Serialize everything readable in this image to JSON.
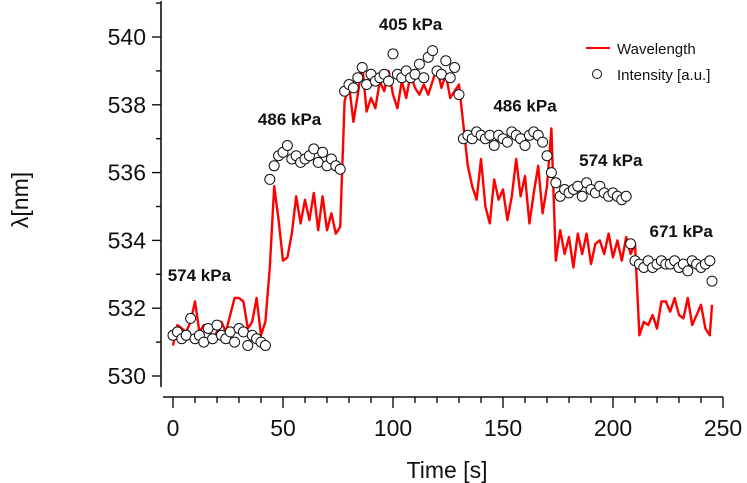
{
  "chart_data": {
    "type": "line",
    "xlabel": "Time [s]",
    "ylabel": "λ[nm]",
    "xlim": [
      0,
      250
    ],
    "ylim": [
      530,
      541
    ],
    "xticks": [
      0,
      50,
      100,
      150,
      200,
      250
    ],
    "yticks": [
      530,
      532,
      534,
      536,
      538,
      540
    ],
    "grid": false,
    "legend_position": "top-right",
    "series": [
      {
        "name": "Wavelength",
        "color": "#ff0000",
        "x": [
          0,
          2,
          4,
          6,
          8,
          10,
          12,
          14,
          16,
          18,
          20,
          22,
          24,
          26,
          28,
          30,
          32,
          34,
          36,
          38,
          40,
          42,
          44,
          46,
          48,
          50,
          52,
          54,
          56,
          58,
          60,
          62,
          64,
          66,
          68,
          70,
          72,
          74,
          76,
          78,
          80,
          82,
          84,
          86,
          88,
          90,
          92,
          94,
          96,
          98,
          100,
          102,
          104,
          106,
          108,
          110,
          112,
          114,
          116,
          118,
          120,
          122,
          124,
          126,
          128,
          130,
          132,
          134,
          136,
          138,
          140,
          142,
          144,
          146,
          148,
          150,
          152,
          154,
          156,
          158,
          160,
          162,
          164,
          166,
          168,
          170,
          172,
          174,
          176,
          178,
          180,
          182,
          184,
          186,
          188,
          190,
          192,
          194,
          196,
          198,
          200,
          202,
          204,
          206,
          208,
          210,
          212,
          214,
          216,
          218,
          220,
          222,
          224,
          226,
          228,
          230,
          232,
          234,
          236,
          238,
          240,
          242,
          244,
          245
        ],
        "values": [
          530.9,
          531.5,
          531.4,
          531.3,
          531.6,
          532.2,
          531.3,
          531.5,
          531.4,
          531.1,
          531.3,
          531.6,
          531.3,
          531.8,
          532.3,
          532.3,
          532.2,
          531.4,
          531.6,
          532.3,
          531.2,
          531.6,
          533.2,
          535.6,
          534.6,
          533.4,
          533.5,
          534.2,
          535.3,
          534.5,
          535.2,
          534.6,
          535.4,
          534.3,
          535.3,
          534.3,
          534.8,
          534.2,
          534.4,
          538.1,
          538.6,
          537.5,
          538.3,
          539.2,
          537.8,
          538.2,
          537.9,
          538.7,
          538.4,
          539.0,
          538.3,
          537.9,
          538.7,
          538.2,
          538.9,
          538.5,
          538.3,
          538.6,
          538.3,
          538.7,
          539.1,
          538.5,
          538.9,
          538.2,
          538.4,
          538.6,
          537.4,
          536.2,
          535.6,
          535.2,
          536.4,
          535.0,
          534.5,
          535.8,
          535.2,
          535.5,
          534.6,
          535.3,
          536.4,
          535.3,
          535.9,
          534.5,
          535.4,
          536.2,
          534.8,
          535.6,
          537.3,
          533.4,
          534.3,
          533.6,
          534.1,
          533.2,
          534.2,
          533.6,
          534.2,
          533.3,
          533.9,
          534.0,
          533.6,
          534.2,
          533.5,
          534.0,
          533.4,
          534.1,
          533.6,
          533.9,
          531.2,
          531.6,
          531.5,
          531.8,
          531.4,
          532.2,
          532.2,
          531.9,
          532.3,
          531.8,
          531.7,
          532.3,
          531.5,
          531.8,
          532.1,
          531.4,
          531.2,
          532.1
        ]
      },
      {
        "name": "Intensity [a.u.]",
        "color": "#000000",
        "x": [
          0,
          2,
          4,
          6,
          8,
          10,
          12,
          14,
          16,
          18,
          20,
          22,
          24,
          26,
          28,
          30,
          32,
          34,
          36,
          38,
          40,
          42,
          44,
          46,
          48,
          50,
          52,
          54,
          56,
          58,
          60,
          62,
          64,
          66,
          68,
          70,
          72,
          74,
          76,
          78,
          80,
          82,
          84,
          86,
          88,
          90,
          92,
          94,
          96,
          98,
          100,
          102,
          104,
          106,
          108,
          110,
          112,
          114,
          116,
          118,
          120,
          122,
          124,
          126,
          128,
          130,
          132,
          134,
          136,
          138,
          140,
          142,
          144,
          146,
          148,
          150,
          152,
          154,
          156,
          158,
          160,
          162,
          164,
          166,
          168,
          170,
          172,
          174,
          176,
          178,
          180,
          182,
          184,
          186,
          188,
          190,
          192,
          194,
          196,
          198,
          200,
          202,
          204,
          206,
          208,
          210,
          212,
          214,
          216,
          218,
          220,
          222,
          224,
          226,
          228,
          230,
          232,
          234,
          236,
          238,
          240,
          242,
          244,
          245
        ],
        "values": [
          531.2,
          531.3,
          531.1,
          531.2,
          531.7,
          531.1,
          531.2,
          531.0,
          531.4,
          531.1,
          531.5,
          531.2,
          531.1,
          531.3,
          531.0,
          531.4,
          531.3,
          530.9,
          531.2,
          531.1,
          531.0,
          530.9,
          535.8,
          536.2,
          536.5,
          536.6,
          536.8,
          536.4,
          536.5,
          536.3,
          536.4,
          536.5,
          536.7,
          536.3,
          536.6,
          536.2,
          536.4,
          536.2,
          536.1,
          538.4,
          538.6,
          538.5,
          538.8,
          539.1,
          538.6,
          538.9,
          538.7,
          538.8,
          538.9,
          538.7,
          539.5,
          538.9,
          538.8,
          539.0,
          538.8,
          538.9,
          539.2,
          538.8,
          539.4,
          539.6,
          539.0,
          538.9,
          539.3,
          538.8,
          539.1,
          538.3,
          537.0,
          537.1,
          537.0,
          537.2,
          537.1,
          537.0,
          537.1,
          536.8,
          537.1,
          537.0,
          536.9,
          537.2,
          537.1,
          537.0,
          536.8,
          537.1,
          537.2,
          537.1,
          536.9,
          536.5,
          536.0,
          535.7,
          535.3,
          535.5,
          535.4,
          535.5,
          535.6,
          535.3,
          535.7,
          535.5,
          535.4,
          535.6,
          535.4,
          535.3,
          535.4,
          535.3,
          535.2,
          535.3,
          533.9,
          533.4,
          533.3,
          533.2,
          533.4,
          533.2,
          533.3,
          533.4,
          533.3,
          533.3,
          533.4,
          533.2,
          533.3,
          533.1,
          533.4,
          533.3,
          533.2,
          533.3,
          533.4,
          532.8
        ]
      }
    ],
    "annotations": [
      {
        "text": "574 kPa",
        "x": 12,
        "y": 532.8
      },
      {
        "text": "486 kPa",
        "x": 53,
        "y": 537.4
      },
      {
        "text": "405 kPa",
        "x": 108,
        "y": 540.2
      },
      {
        "text": "486 kPa",
        "x": 160,
        "y": 537.8
      },
      {
        "text": "574 kPa",
        "x": 199,
        "y": 536.2
      },
      {
        "text": "671 kPa",
        "x": 231,
        "y": 534.1
      }
    ]
  }
}
